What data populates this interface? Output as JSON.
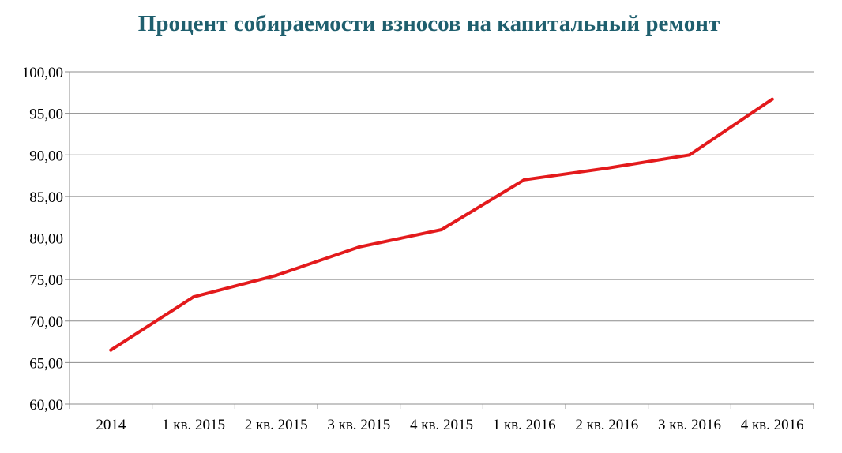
{
  "chart_data": {
    "type": "line",
    "title": "Процент собираемости взносов на капитальный ремонт",
    "xlabel": "",
    "ylabel": "",
    "categories": [
      "2014",
      "1 кв. 2015",
      "2 кв. 2015",
      "3 кв. 2015",
      "4 кв. 2015",
      "1 кв. 2016",
      "2 кв. 2016",
      "3 кв. 2016",
      "4 кв. 2016"
    ],
    "series": [
      {
        "values": [
          66.5,
          72.9,
          75.5,
          78.9,
          81.0,
          87.0,
          88.4,
          90.0,
          96.7
        ],
        "color": "#e31a1c"
      }
    ],
    "ylim": [
      60,
      100
    ],
    "yticks": [
      "60,00",
      "65,00",
      "70,00",
      "75,00",
      "80,00",
      "85,00",
      "90,00",
      "95,00",
      "100,00"
    ],
    "grid": true,
    "legend": "none"
  }
}
